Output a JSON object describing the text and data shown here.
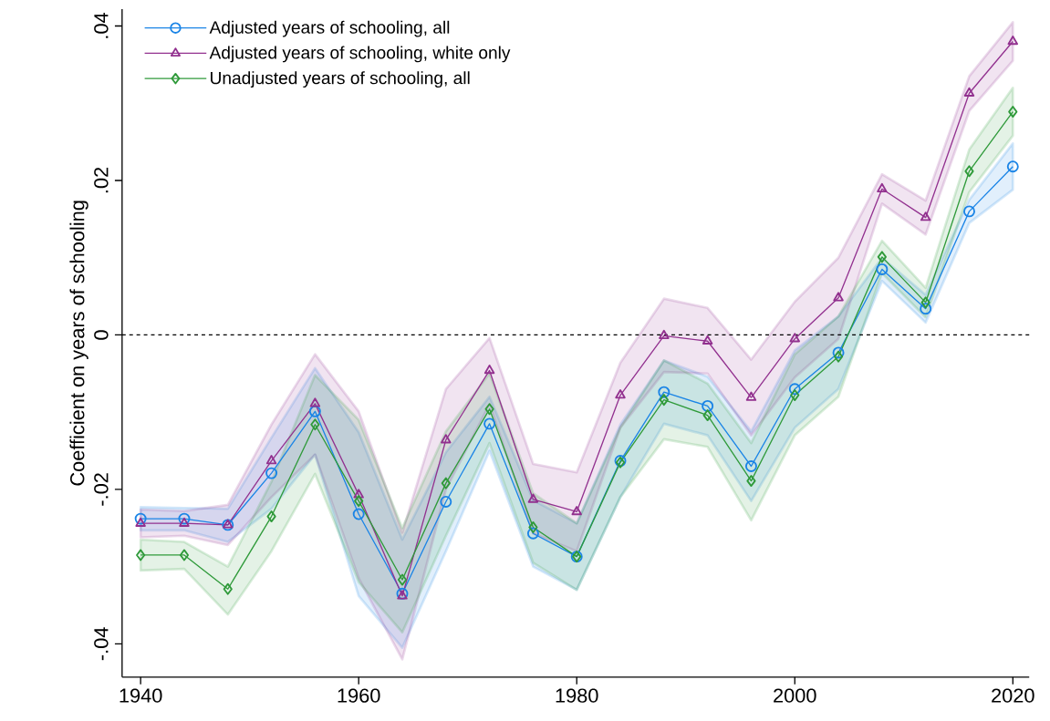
{
  "chart_data": {
    "type": "line",
    "ylabel": "Coefficient on years of schooling",
    "x": [
      1940,
      1944,
      1948,
      1952,
      1956,
      1960,
      1964,
      1968,
      1972,
      1976,
      1980,
      1984,
      1988,
      1992,
      1996,
      2000,
      2004,
      2008,
      2012,
      2016,
      2020
    ],
    "xlim": [
      1938.3,
      2021.5
    ],
    "ylim": [
      -0.0443,
      0.0422
    ],
    "xticks": [
      1940,
      1960,
      1980,
      2000,
      2020
    ],
    "yticks": [
      {
        "value": -0.04,
        "label": "-.04"
      },
      {
        "value": -0.02,
        "label": "-.02"
      },
      {
        "value": 0,
        "label": "0"
      },
      {
        "value": 0.02,
        "label": ".02"
      },
      {
        "value": 0.04,
        "label": ".04"
      }
    ],
    "legend": "top left",
    "grid": false,
    "line_style": "solid",
    "ref_lines": [
      {
        "axis": "y",
        "value": 0,
        "color": "#000000",
        "line_style": "dashed"
      }
    ],
    "series": [
      {
        "name": "Adjusted years of schooling, all",
        "color": "#1a84e6",
        "marker": "circle",
        "values": [
          -0.0238,
          -0.0238,
          -0.0246,
          -0.0179,
          -0.0099,
          -0.0232,
          -0.0335,
          -0.0216,
          -0.0115,
          -0.0257,
          -0.0287,
          -0.0163,
          -0.0074,
          -0.0092,
          -0.017,
          -0.007,
          -0.0023,
          0.0085,
          0.0034,
          0.016,
          0.0218
        ],
        "lower": [
          -0.0253,
          -0.0253,
          -0.0268,
          -0.0225,
          -0.0155,
          -0.0338,
          -0.0405,
          -0.028,
          -0.015,
          -0.03,
          -0.033,
          -0.021,
          -0.0115,
          -0.013,
          -0.0215,
          -0.012,
          -0.007,
          0.007,
          0.0016,
          0.0145,
          0.0188
        ],
        "upper": [
          -0.0223,
          -0.0224,
          -0.0225,
          -0.0133,
          -0.0043,
          -0.0126,
          -0.0265,
          -0.0152,
          -0.008,
          -0.0214,
          -0.0244,
          -0.0116,
          -0.0033,
          -0.0054,
          -0.0125,
          -0.002,
          0.0024,
          0.01,
          0.0052,
          0.0175,
          0.0248
        ]
      },
      {
        "name": "Adjusted years of schooling, white only",
        "color": "#92318f",
        "marker": "triangle",
        "values": [
          -0.0244,
          -0.0244,
          -0.0246,
          -0.0163,
          -0.0089,
          -0.0207,
          -0.0338,
          -0.0136,
          -0.0046,
          -0.0213,
          -0.0229,
          -0.0078,
          -0.0001,
          -0.0008,
          -0.0081,
          -0.0005,
          0.0048,
          0.0189,
          0.0152,
          0.0313,
          0.038
        ],
        "lower": [
          -0.0262,
          -0.026,
          -0.0272,
          -0.021,
          -0.0155,
          -0.0315,
          -0.042,
          -0.02,
          -0.009,
          -0.0257,
          -0.028,
          -0.012,
          -0.0048,
          -0.005,
          -0.013,
          -0.0055,
          -0.0005,
          0.017,
          0.013,
          0.029,
          0.0355
        ],
        "upper": [
          -0.0226,
          -0.0228,
          -0.022,
          -0.0116,
          -0.0025,
          -0.0099,
          -0.0256,
          -0.007,
          -0.0004,
          -0.0167,
          -0.0178,
          -0.0036,
          0.0047,
          0.0035,
          -0.0032,
          0.0043,
          0.01,
          0.0208,
          0.0174,
          0.0335,
          0.0405
        ]
      },
      {
        "name": "Unadjusted years of schooling, all",
        "color": "#2f9a3a",
        "marker": "diamond",
        "values": [
          -0.0285,
          -0.0285,
          -0.0329,
          -0.0235,
          -0.0116,
          -0.0215,
          -0.0317,
          -0.0192,
          -0.0096,
          -0.0249,
          -0.0287,
          -0.0165,
          -0.0084,
          -0.0104,
          -0.0189,
          -0.0078,
          -0.0028,
          0.0101,
          0.0042,
          0.0212,
          0.0289
        ],
        "lower": [
          -0.0305,
          -0.0303,
          -0.0362,
          -0.028,
          -0.018,
          -0.032,
          -0.0385,
          -0.026,
          -0.014,
          -0.0295,
          -0.033,
          -0.021,
          -0.0135,
          -0.0145,
          -0.024,
          -0.013,
          -0.008,
          0.008,
          0.0023,
          0.0185,
          0.0258
        ],
        "upper": [
          -0.0265,
          -0.0268,
          -0.03,
          -0.019,
          -0.0052,
          -0.011,
          -0.025,
          -0.0125,
          -0.005,
          -0.0205,
          -0.0244,
          -0.012,
          -0.0033,
          -0.0063,
          -0.014,
          -0.0025,
          0.0024,
          0.0122,
          0.0061,
          0.024,
          0.032
        ]
      }
    ]
  }
}
